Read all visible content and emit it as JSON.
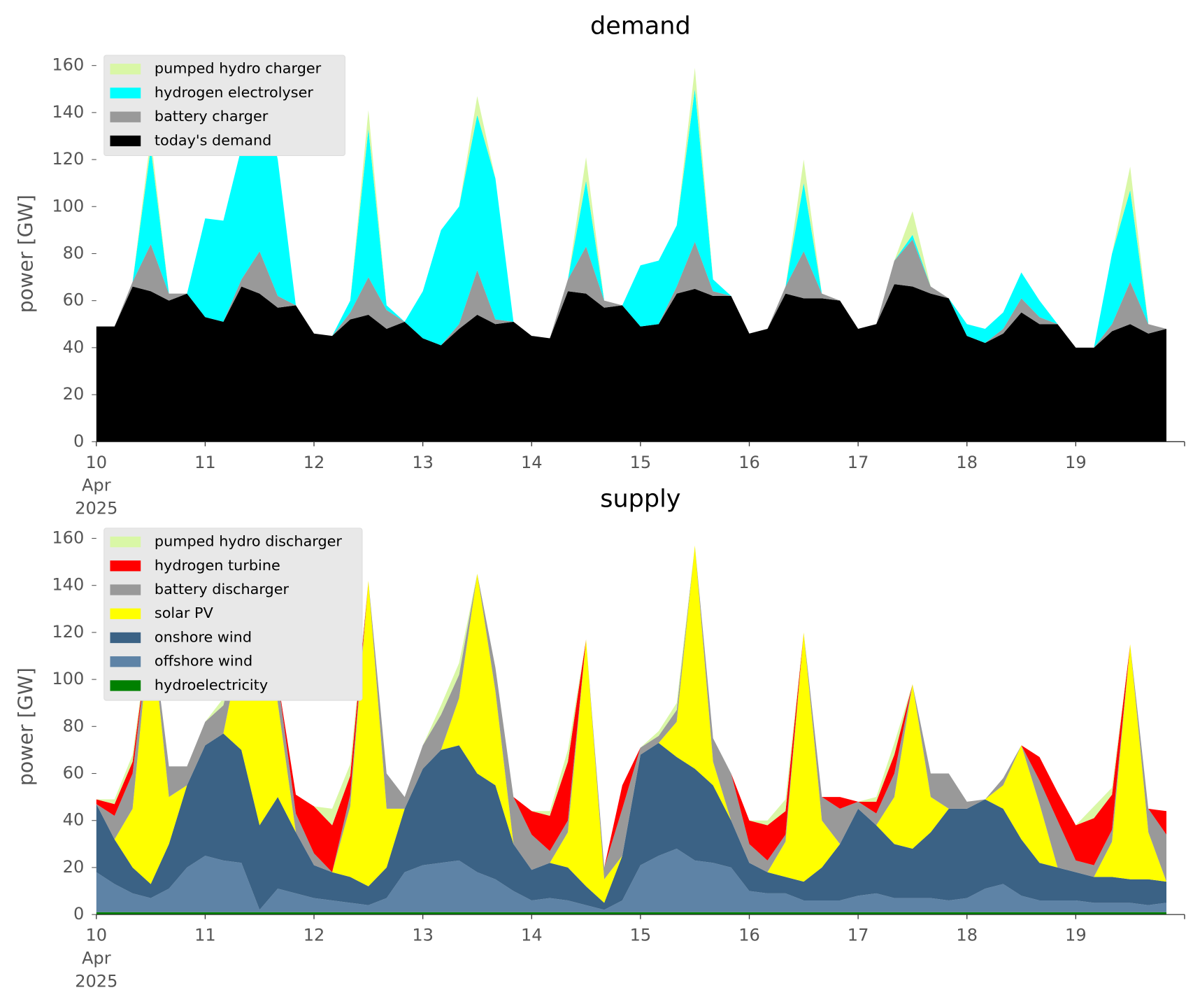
{
  "chart_data": [
    {
      "type": "stacked-area",
      "title": "demand",
      "ylabel": "power [GW]",
      "x": [
        10,
        10.167,
        10.333,
        10.5,
        10.667,
        10.833,
        11,
        11.167,
        11.333,
        11.5,
        11.667,
        11.833,
        12,
        12.167,
        12.333,
        12.5,
        12.667,
        12.833,
        13,
        13.167,
        13.333,
        13.5,
        13.667,
        13.833,
        14,
        14.167,
        14.333,
        14.5,
        14.667,
        14.833,
        15,
        15.167,
        15.333,
        15.5,
        15.667,
        15.833,
        16,
        16.167,
        16.333,
        16.5,
        16.667,
        16.833,
        17,
        17.167,
        17.333,
        17.5,
        17.667,
        17.833,
        18,
        18.167,
        18.333,
        18.5,
        18.667,
        18.833,
        19,
        19.167,
        19.333,
        19.5,
        19.667,
        19.833
      ],
      "xlim": [
        10,
        20
      ],
      "xticks": [
        {
          "value": 10,
          "label": [
            "10",
            "Apr",
            "2025"
          ]
        },
        11,
        12,
        13,
        14,
        15,
        16,
        17,
        18,
        19
      ],
      "ylim": [
        0,
        165
      ],
      "yticks": [
        0,
        20,
        40,
        60,
        80,
        100,
        120,
        140,
        160
      ],
      "legend": "upper left",
      "series": [
        {
          "name": "today's demand",
          "color": "#000000",
          "values": [
            49,
            49,
            66,
            64,
            60,
            63,
            53,
            51,
            66,
            63,
            57,
            58,
            46,
            45,
            52,
            54,
            48,
            51,
            44,
            41,
            48,
            54,
            50,
            51,
            45,
            44,
            64,
            63,
            57,
            58,
            49,
            50,
            63,
            65,
            62,
            62,
            46,
            48,
            63,
            61,
            61,
            60,
            48,
            50,
            67,
            66,
            63,
            61,
            45,
            42,
            46,
            55,
            50,
            50,
            40,
            40,
            47,
            50,
            46,
            48
          ]
        },
        {
          "name": "battery charger",
          "color": "#999999",
          "values": [
            0,
            0,
            2,
            20,
            3,
            0,
            0,
            0,
            3,
            18,
            5,
            0,
            0,
            0,
            3,
            16,
            8,
            0,
            0,
            0,
            2,
            19,
            2,
            0,
            0,
            0,
            5,
            20,
            3,
            0,
            0,
            0,
            3,
            20,
            2,
            0,
            0,
            0,
            3,
            20,
            2,
            0,
            0,
            0,
            10,
            20,
            3,
            0,
            0,
            0,
            2,
            6,
            3,
            0,
            0,
            0,
            3,
            18,
            4,
            0
          ]
        },
        {
          "name": "hydrogen electrolyser",
          "color": "#00ffff",
          "values": [
            0,
            0,
            0,
            41,
            0,
            0,
            42,
            43,
            56,
            74,
            58,
            0,
            0,
            0,
            5,
            63,
            2,
            0,
            20,
            49,
            50,
            66,
            60,
            0,
            0,
            0,
            0,
            28,
            0,
            0,
            26,
            27,
            26,
            65,
            5,
            0,
            0,
            0,
            0,
            29,
            0,
            0,
            0,
            0,
            0,
            2,
            0,
            0,
            5,
            6,
            7,
            11,
            7,
            0,
            0,
            0,
            30,
            39,
            0,
            0
          ]
        },
        {
          "name": "pumped hydro charger",
          "color": "#d9f7a6",
          "values": [
            0,
            0,
            0,
            5,
            0,
            0,
            0,
            0,
            0,
            2,
            0,
            0,
            0,
            0,
            0,
            8,
            0,
            0,
            0,
            0,
            0,
            8,
            0,
            0,
            0,
            0,
            0,
            10,
            0,
            0,
            0,
            0,
            0,
            9,
            0,
            0,
            0,
            0,
            0,
            10,
            0,
            0,
            0,
            0,
            0,
            10,
            0,
            0,
            0,
            0,
            0,
            0,
            0,
            0,
            0,
            0,
            0,
            10,
            0,
            0
          ]
        }
      ]
    },
    {
      "type": "stacked-area",
      "title": "supply",
      "ylabel": "power [GW]",
      "x": [
        10,
        10.167,
        10.333,
        10.5,
        10.667,
        10.833,
        11,
        11.167,
        11.333,
        11.5,
        11.667,
        11.833,
        12,
        12.167,
        12.333,
        12.5,
        12.667,
        12.833,
        13,
        13.167,
        13.333,
        13.5,
        13.667,
        13.833,
        14,
        14.167,
        14.333,
        14.5,
        14.667,
        14.833,
        15,
        15.167,
        15.333,
        15.5,
        15.667,
        15.833,
        16,
        16.167,
        16.333,
        16.5,
        16.667,
        16.833,
        17,
        17.167,
        17.333,
        17.5,
        17.667,
        17.833,
        18,
        18.167,
        18.333,
        18.5,
        18.667,
        18.833,
        19,
        19.167,
        19.333,
        19.5,
        19.667,
        19.833
      ],
      "xlim": [
        10,
        20
      ],
      "xticks": [
        {
          "value": 10,
          "label": [
            "10",
            "Apr",
            "2025"
          ]
        },
        11,
        12,
        13,
        14,
        15,
        16,
        17,
        18,
        19
      ],
      "ylim": [
        0,
        165
      ],
      "yticks": [
        0,
        20,
        40,
        60,
        80,
        100,
        120,
        140,
        160
      ],
      "legend": "upper left",
      "series": [
        {
          "name": "hydroelectricity",
          "color": "#008000",
          "values": [
            1,
            1,
            1,
            1,
            1,
            1,
            1,
            1,
            1,
            1,
            1,
            1,
            1,
            1,
            1,
            1,
            1,
            1,
            1,
            1,
            1,
            1,
            1,
            1,
            1,
            1,
            1,
            1,
            1,
            1,
            1,
            1,
            1,
            1,
            1,
            1,
            1,
            1,
            1,
            1,
            1,
            1,
            1,
            1,
            1,
            1,
            1,
            1,
            1,
            1,
            1,
            1,
            1,
            1,
            1,
            1,
            1,
            1,
            1,
            1
          ]
        },
        {
          "name": "offshore wind",
          "color": "#5e83a6",
          "values": [
            17,
            12,
            8,
            6,
            10,
            19,
            24,
            22,
            21,
            1,
            10,
            8,
            6,
            5,
            4,
            3,
            6,
            17,
            20,
            21,
            22,
            17,
            14,
            9,
            5,
            6,
            5,
            3,
            1,
            5,
            20,
            24,
            27,
            22,
            21,
            19,
            9,
            8,
            8,
            5,
            5,
            5,
            7,
            8,
            6,
            6,
            6,
            5,
            6,
            10,
            12,
            7,
            5,
            5,
            5,
            4,
            4,
            4,
            3,
            4
          ]
        },
        {
          "name": "onshore wind",
          "color": "#3b6285",
          "values": [
            29,
            19,
            11,
            6,
            19,
            35,
            47,
            54,
            48,
            36,
            39,
            26,
            14,
            12,
            11,
            8,
            13,
            27,
            41,
            48,
            49,
            42,
            40,
            20,
            13,
            15,
            14,
            8,
            3,
            19,
            47,
            48,
            39,
            39,
            33,
            20,
            12,
            9,
            7,
            8,
            14,
            24,
            37,
            29,
            23,
            21,
            28,
            39,
            38,
            38,
            32,
            24,
            16,
            14,
            12,
            11,
            11,
            10,
            11,
            9
          ]
        },
        {
          "name": "solar PV",
          "color": "#ffff00",
          "values": [
            0,
            0,
            25,
            112,
            20,
            0,
            0,
            0,
            45,
            115,
            40,
            0,
            0,
            0,
            30,
            130,
            25,
            0,
            0,
            0,
            20,
            85,
            40,
            0,
            0,
            0,
            15,
            105,
            10,
            0,
            0,
            0,
            15,
            95,
            10,
            0,
            0,
            0,
            15,
            106,
            20,
            0,
            0,
            0,
            20,
            70,
            15,
            0,
            0,
            0,
            10,
            40,
            25,
            0,
            0,
            0,
            15,
            100,
            20,
            0
          ]
        },
        {
          "name": "battery discharger",
          "color": "#999999",
          "values": [
            0,
            10,
            15,
            0,
            13,
            8,
            10,
            12,
            5,
            0,
            10,
            8,
            5,
            0,
            5,
            0,
            15,
            5,
            10,
            15,
            10,
            0,
            10,
            20,
            15,
            5,
            5,
            0,
            5,
            20,
            3,
            3,
            5,
            0,
            10,
            20,
            8,
            5,
            3,
            0,
            10,
            15,
            3,
            5,
            10,
            0,
            10,
            15,
            3,
            0,
            3,
            0,
            10,
            20,
            5,
            5,
            5,
            0,
            10,
            20
          ]
        },
        {
          "name": "hydrogen turbine",
          "color": "#ff0000",
          "values": [
            2,
            5,
            5,
            0,
            0,
            0,
            0,
            0,
            0,
            0,
            0,
            8,
            20,
            20,
            8,
            0,
            0,
            0,
            0,
            0,
            0,
            0,
            0,
            0,
            10,
            15,
            25,
            0,
            0,
            10,
            0,
            0,
            0,
            0,
            0,
            0,
            10,
            15,
            10,
            0,
            0,
            5,
            0,
            5,
            8,
            0,
            0,
            0,
            0,
            0,
            0,
            0,
            10,
            12,
            15,
            20,
            15,
            0,
            0,
            10
          ]
        },
        {
          "name": "pumped hydro discharger",
          "color": "#d9f7a6",
          "values": [
            0,
            2,
            3,
            0,
            0,
            0,
            0,
            3,
            5,
            0,
            0,
            0,
            0,
            7,
            5,
            0,
            0,
            0,
            0,
            4,
            5,
            0,
            0,
            0,
            0,
            2,
            5,
            0,
            0,
            0,
            0,
            2,
            3,
            0,
            0,
            0,
            0,
            2,
            5,
            0,
            0,
            0,
            0,
            2,
            5,
            0,
            0,
            0,
            0,
            0,
            0,
            0,
            0,
            0,
            0,
            5,
            3,
            0,
            0,
            0
          ]
        }
      ]
    }
  ]
}
